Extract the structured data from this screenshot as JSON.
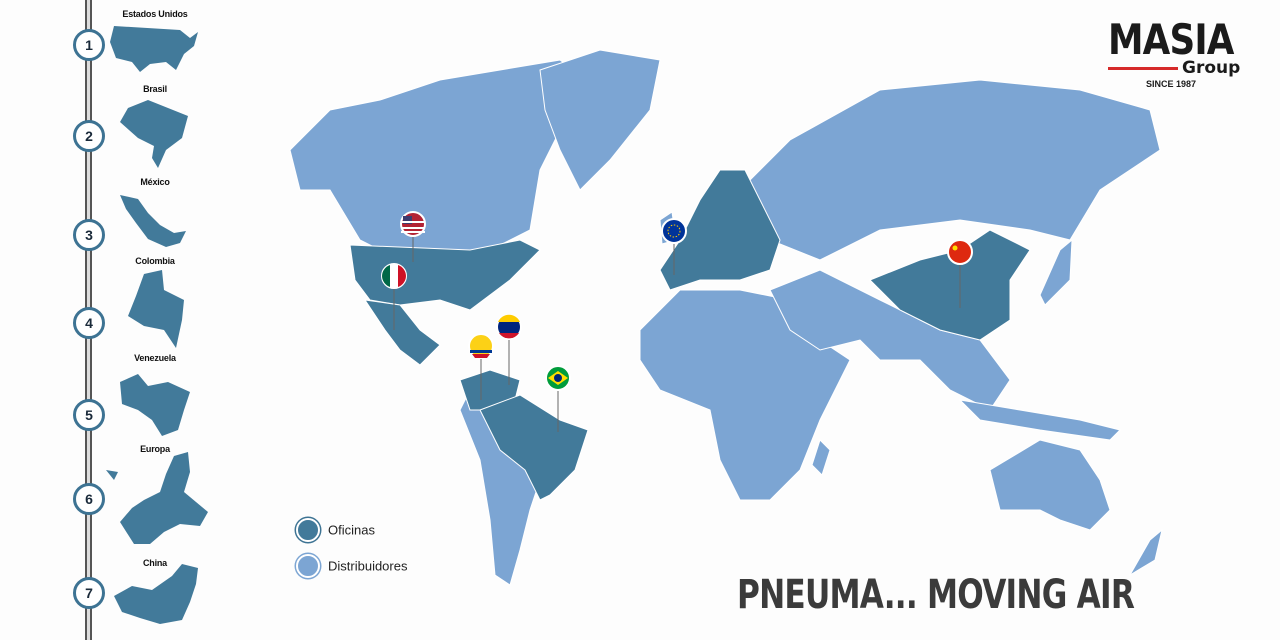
{
  "sidebar": {
    "items": [
      {
        "number": "1",
        "label": "Estados Unidos"
      },
      {
        "number": "2",
        "label": "Brasil"
      },
      {
        "number": "3",
        "label": "México"
      },
      {
        "number": "4",
        "label": "Colombia"
      },
      {
        "number": "5",
        "label": "Venezuela"
      },
      {
        "number": "6",
        "label": "Europa"
      },
      {
        "number": "7",
        "label": "China"
      }
    ]
  },
  "logo": {
    "name": "MASIA",
    "sub": "Group",
    "since": "SINCE 1987"
  },
  "legend": {
    "offices": "Oficinas",
    "distributors": "Distribuidores"
  },
  "colors": {
    "offices": "#427a9a",
    "distributors": "#7ca5d3",
    "accent": "#d62a2a"
  },
  "pins": [
    "usa-flag",
    "mexico-flag",
    "colombia-flag",
    "venezuela-flag",
    "brazil-flag",
    "eu-flag",
    "china-flag"
  ],
  "slogan": "PNEUMA... MOVING AIR"
}
